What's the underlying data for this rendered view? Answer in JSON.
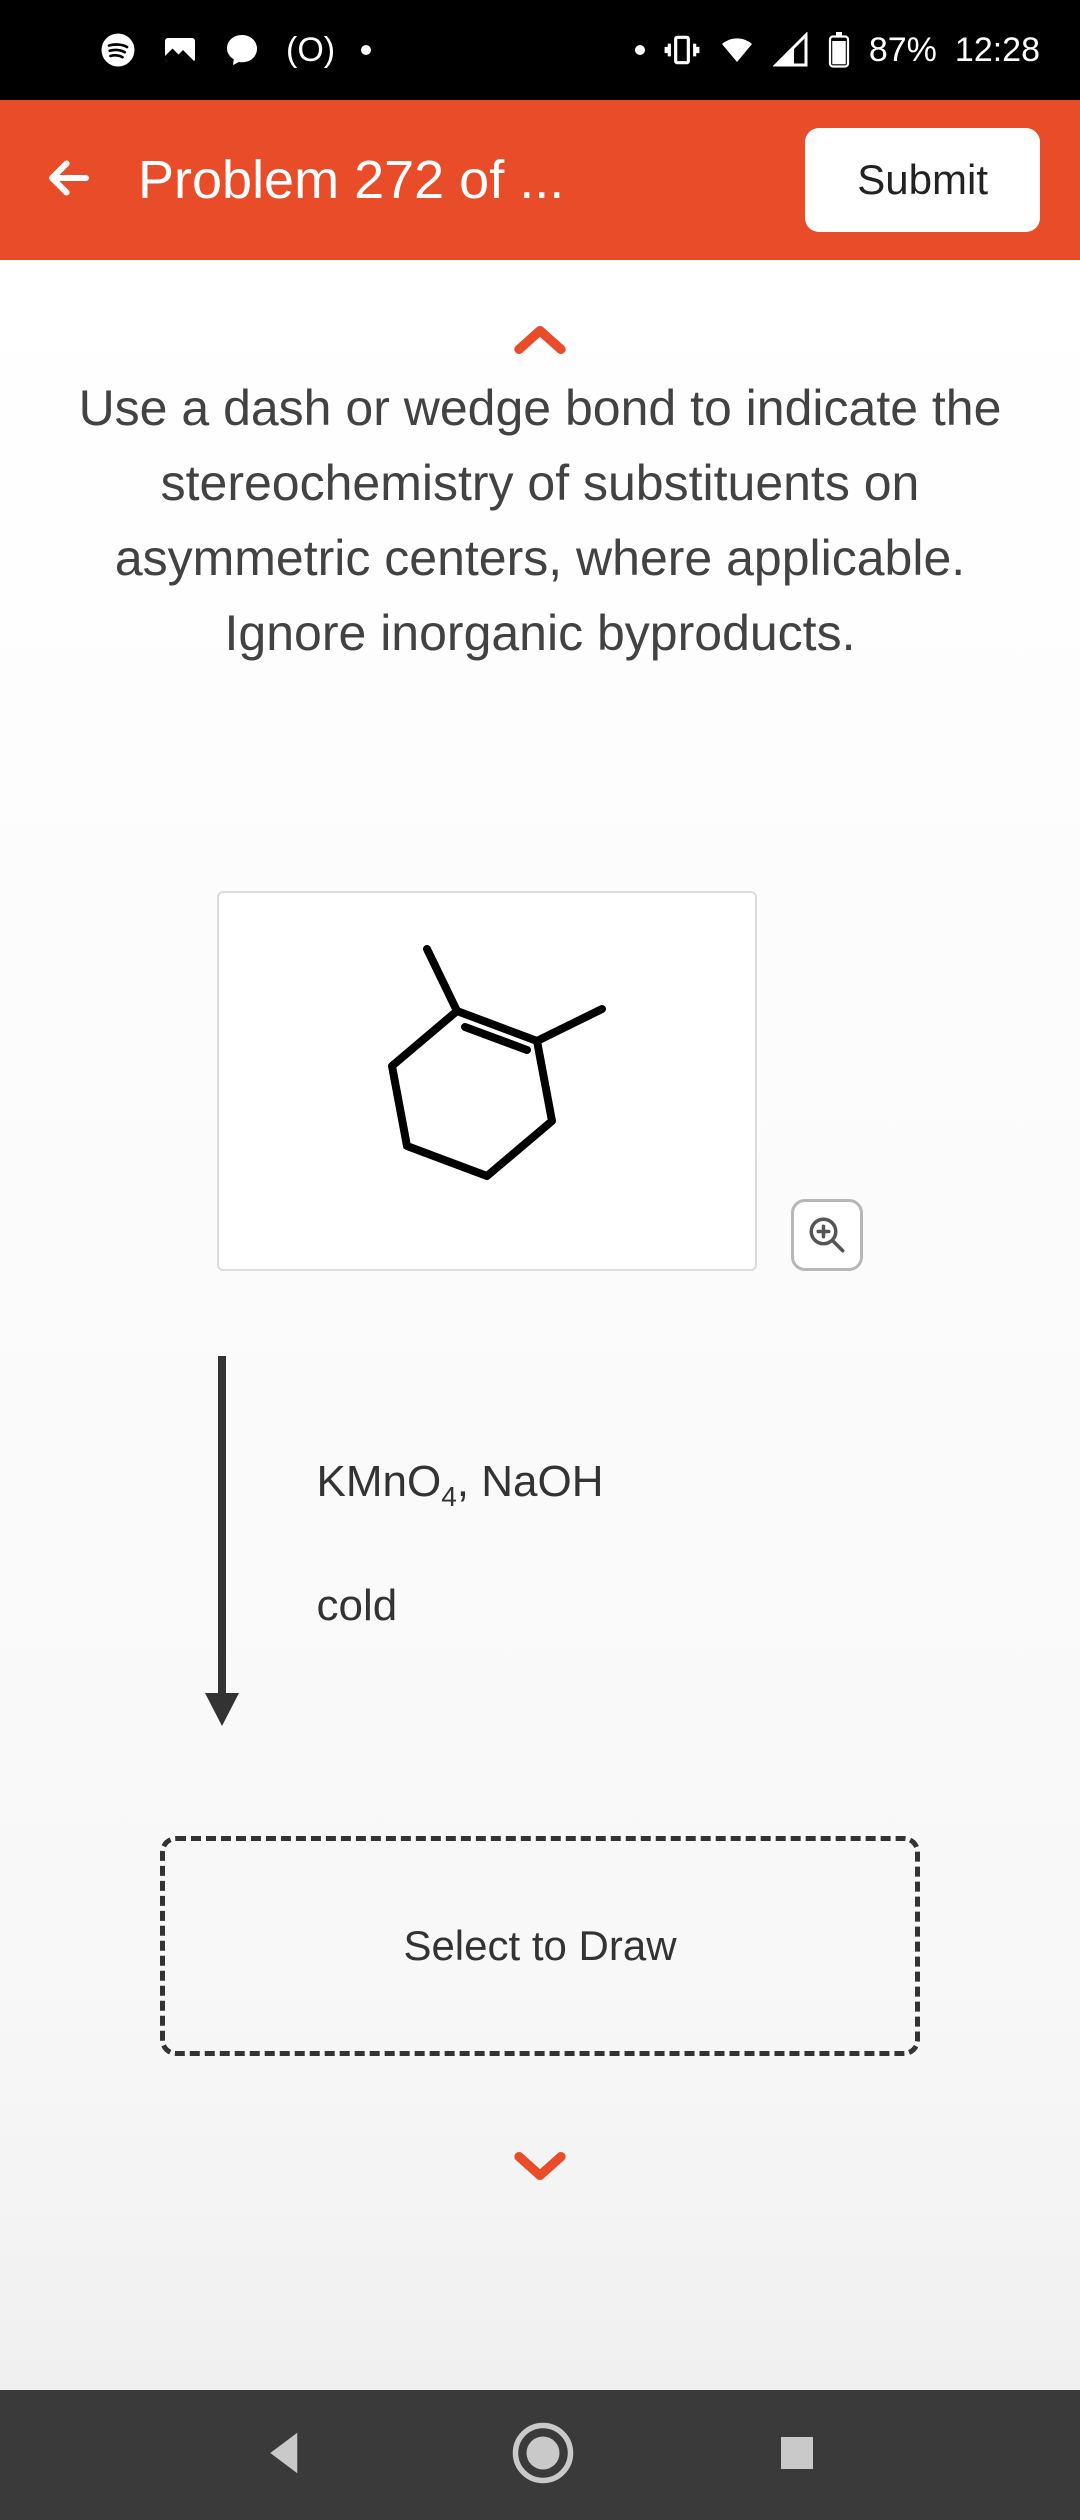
{
  "status": {
    "battery_text": "87%",
    "time": "12:28",
    "hotspot_label": "(O)"
  },
  "header": {
    "title": "Problem 272 of ...",
    "submit_label": "Submit"
  },
  "problem": {
    "prompt": "Use a dash or wedge bond to indicate the stereochemistry of substituents on asymmetric centers, where applicable. Ignore inorganic byproducts.",
    "reagent_line1_html": "KMnO<sub>4</sub>, NaOH",
    "reagent_line2": "cold",
    "draw_placeholder": "Select to Draw"
  },
  "colors": {
    "accent": "#e84c28",
    "bg": "#ffffff",
    "text": "#424242"
  },
  "molecule": {
    "type": "chemical-structure",
    "description": "1,2-dimethylcyclohexene",
    "ring_atoms": 6,
    "double_bond_between": [
      1,
      2
    ],
    "substituents": [
      {
        "at": 1,
        "group": "CH3"
      },
      {
        "at": 2,
        "group": "CH3"
      }
    ],
    "stroke_color": "#000000",
    "stroke_width": 8
  }
}
